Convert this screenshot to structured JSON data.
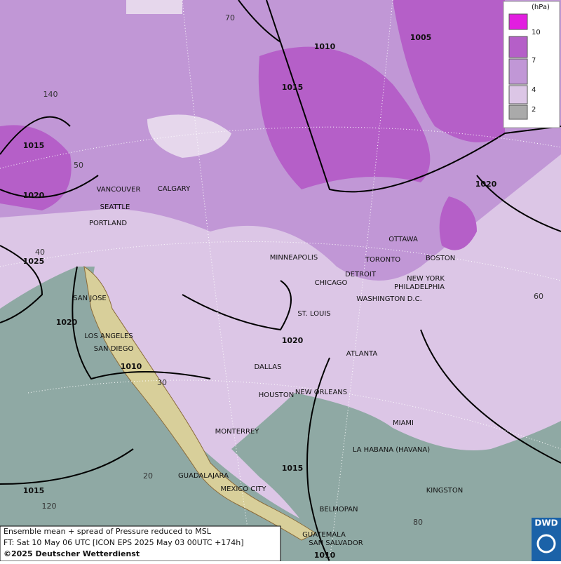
{
  "legend": {
    "unit": "(hPa)",
    "ticks": [
      10,
      7,
      4,
      2
    ]
  },
  "cities": [
    "VANCOUVER",
    "CALGARY",
    "SEATTLE",
    "PORTLAND",
    "MINNEAPOLIS",
    "OTTAWA",
    "TORONTO",
    "BOSTON",
    "DETROIT",
    "NEW YORK",
    "CHICAGO",
    "PHILADELPHIA",
    "WASHINGTON D.C.",
    "SAN JOSE",
    "ST. LOUIS",
    "LOS ANGELES",
    "SAN DIEGO",
    "ATLANTA",
    "DALLAS",
    "HOUSTON",
    "NEW ORLEANS",
    "MIAMI",
    "MONTERREY",
    "LA HABANA (HAVANA)",
    "GUADALAJARA",
    "MEXICO CITY",
    "KINGSTON",
    "BELMOPAN",
    "GUATEMALA",
    "SAN SALVADOR"
  ],
  "isobar_labels": [
    1005,
    1010,
    1015,
    1015,
    1020,
    1020,
    1025,
    1020,
    1020,
    1010,
    1015,
    1015,
    1010
  ],
  "grid_labels": [
    70,
    140,
    50,
    40,
    60,
    30,
    20,
    120,
    80
  ],
  "footer": {
    "line1": "Ensemble mean + spread of Pressure reduced to MSL",
    "line2": "FT: Sat 10 May 06 UTC [ICON EPS 2025 May 03 00UTC +174h]",
    "line3": "©2025 Deutscher Wetterdienst"
  },
  "logo": "DWD"
}
